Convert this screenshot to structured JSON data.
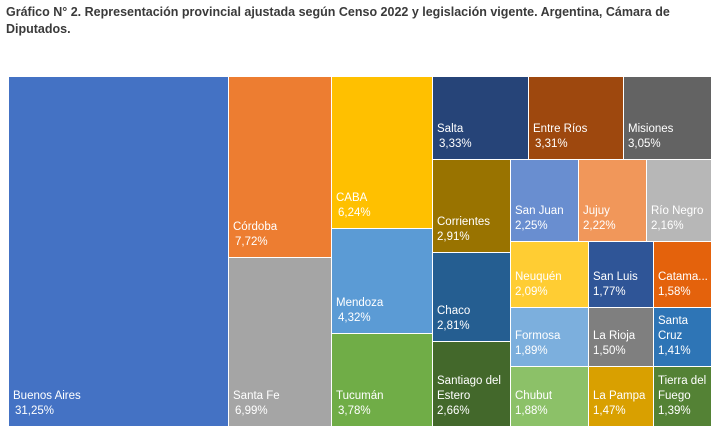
{
  "title": "Gráfico N° 2. Representación provincial ajustada según Censo 2022 y legislación vigente. Argentina, Cámara de Diputados.",
  "chart_data": {
    "type": "treemap",
    "title": "Gráfico N° 2. Representación provincial ajustada según Censo 2022 y legislación vigente. Argentina, Cámara de Diputados.",
    "unit": "%",
    "items": [
      {
        "name": "Buenos Aires",
        "label": "Buenos Aires",
        "value": 31.25,
        "value_label": "31,25%",
        "color": "#4472c4"
      },
      {
        "name": "Córdoba",
        "label": "Córdoba",
        "value": 7.72,
        "value_label": "7,72%",
        "color": "#ed7d31"
      },
      {
        "name": "Santa Fe",
        "label": "Santa Fe",
        "value": 6.99,
        "value_label": "6,99%",
        "color": "#a5a5a5"
      },
      {
        "name": "CABA",
        "label": "CABA",
        "value": 6.24,
        "value_label": "6,24%",
        "color": "#ffc000"
      },
      {
        "name": "Mendoza",
        "label": "Mendoza",
        "value": 4.32,
        "value_label": "4,32%",
        "color": "#5b9bd5"
      },
      {
        "name": "Tucumán",
        "label": "Tucumán",
        "value": 3.78,
        "value_label": "3,78%",
        "color": "#70ad47"
      },
      {
        "name": "Salta",
        "label": "Salta",
        "value": 3.33,
        "value_label": "3,33%",
        "color": "#264478"
      },
      {
        "name": "Entre Ríos",
        "label": "Entre Ríos",
        "value": 3.31,
        "value_label": "3,31%",
        "color": "#9e480e"
      },
      {
        "name": "Misiones",
        "label": "Misiones",
        "value": 3.05,
        "value_label": "3,05%",
        "color": "#636363"
      },
      {
        "name": "Corrientes",
        "label": "Corrientes",
        "value": 2.91,
        "value_label": "2,91%",
        "color": "#997300"
      },
      {
        "name": "Chaco",
        "label": "Chaco",
        "value": 2.81,
        "value_label": "2,81%",
        "color": "#255e91"
      },
      {
        "name": "Santiago del Estero",
        "label": "Santiago del\nEstero",
        "value": 2.66,
        "value_label": "2,66%",
        "color": "#43682b"
      },
      {
        "name": "San Juan",
        "label": "San Juan",
        "value": 2.25,
        "value_label": "2,25%",
        "color": "#698ed0"
      },
      {
        "name": "Jujuy",
        "label": "Jujuy",
        "value": 2.22,
        "value_label": "2,22%",
        "color": "#f1975a"
      },
      {
        "name": "Río Negro",
        "label": "Río Negro",
        "value": 2.16,
        "value_label": "2,16%",
        "color": "#b7b7b7"
      },
      {
        "name": "Neuquén",
        "label": "Neuquén",
        "value": 2.09,
        "value_label": "2,09%",
        "color": "#ffcd33"
      },
      {
        "name": "San Luis",
        "label": "San Luis",
        "value": 1.77,
        "value_label": "1,77%",
        "color": "#2f5597"
      },
      {
        "name": "Catamarca",
        "label": "Catama...",
        "value": 1.58,
        "value_label": "1,58%",
        "color": "#e4620c"
      },
      {
        "name": "Formosa",
        "label": "Formosa",
        "value": 1.89,
        "value_label": "1,89%",
        "color": "#7cafdd"
      },
      {
        "name": "La Rioja",
        "label": "La Rioja",
        "value": 1.5,
        "value_label": "1,50%",
        "color": "#7f7f7f"
      },
      {
        "name": "Santa Cruz",
        "label": "Santa\nCruz",
        "value": 1.41,
        "value_label": "1,41%",
        "color": "#2e75b6"
      },
      {
        "name": "Chubut",
        "label": "Chubut",
        "value": 1.88,
        "value_label": "1,88%",
        "color": "#8cc168"
      },
      {
        "name": "La Pampa",
        "label": "La Pampa",
        "value": 1.47,
        "value_label": "1,47%",
        "color": "#d9a000"
      },
      {
        "name": "Tierra del Fuego",
        "label": "Tierra del\nFuego",
        "value": 1.39,
        "value_label": "1,39%",
        "color": "#548235"
      }
    ]
  }
}
